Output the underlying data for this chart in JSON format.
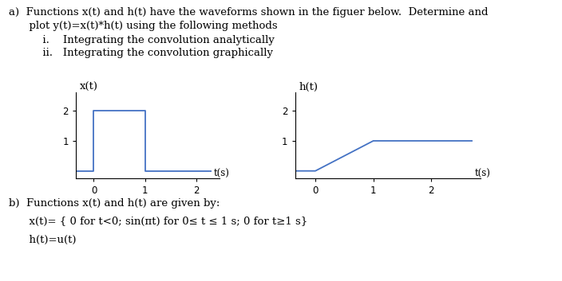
{
  "line_a1": "a)  Functions x(t) and h(t) have the waveforms shown in the figuer below.  Determine and",
  "line_a2": "      plot y(t)=x(t)*h(t) using the following methods",
  "line_i": "          i.    Integrating the convolution analytically",
  "line_ii": "          ii.   Integrating the convolution graphically",
  "label_xt": "x(t)",
  "label_ht": "h(t)",
  "label_ts": "t(s)",
  "xt_color": "#4472C4",
  "ht_color": "#4472C4",
  "ax_color": "#555555",
  "line_b1": "b)  Functions x(t) and h(t) are given by:",
  "line_b2": "      x(t)= { 0 for t<0; sin(πt) for 0≤ t ≤ 1 s; 0 for t≥1 s}",
  "line_b3": "      h(t)=u(t)",
  "bg": "#ffffff",
  "font_size": 9.5
}
